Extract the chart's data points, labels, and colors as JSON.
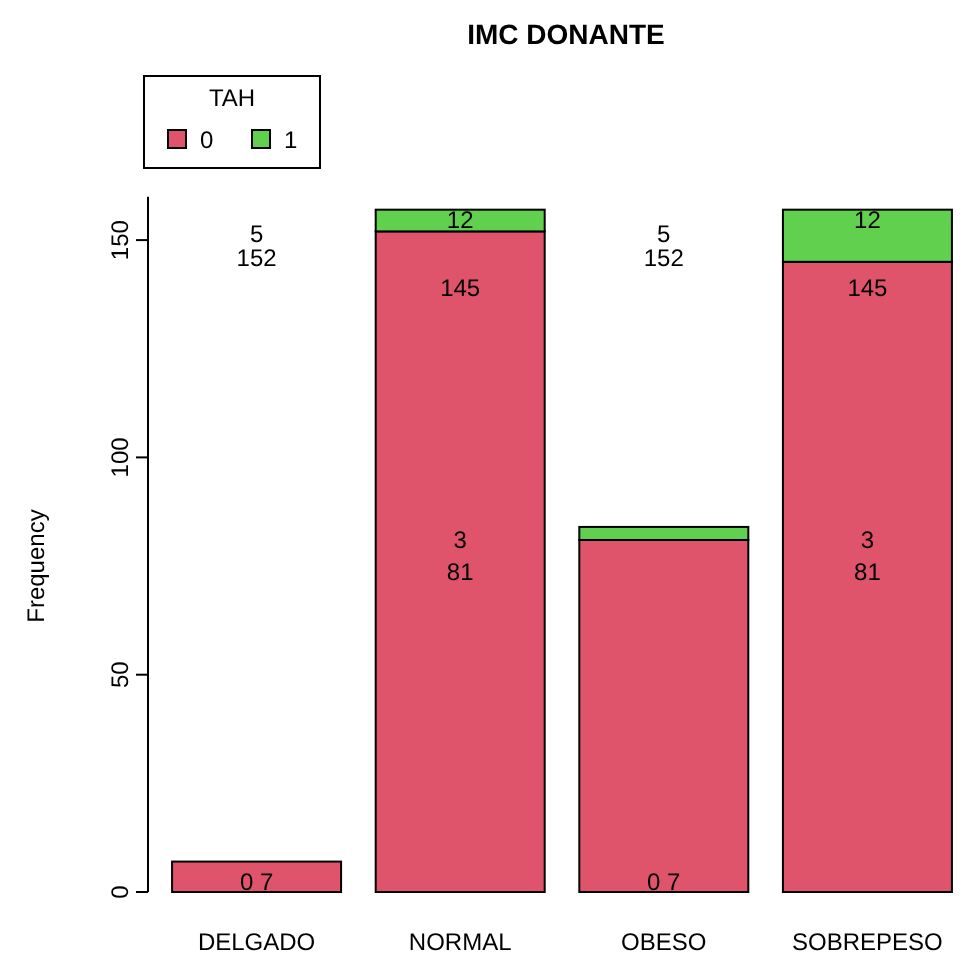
{
  "chart_data": {
    "type": "bar",
    "title": "IMC DONANTE",
    "ylabel": "Frequency",
    "legend_title": "TAH",
    "legend": "top left",
    "stacked": true,
    "categories": [
      "DELGADO",
      "NORMAL",
      "OBESO",
      "SOBREPESO"
    ],
    "series": [
      {
        "name": "0",
        "color": "#df536b",
        "values": [
          7,
          152,
          81,
          145
        ]
      },
      {
        "name": "1",
        "color": "#61d04f",
        "values": [
          0,
          5,
          3,
          12
        ]
      }
    ],
    "ylim": [
      0,
      160
    ],
    "yticks": [
      0,
      50,
      100,
      150
    ],
    "annotations": [
      "5",
      "152",
      "0",
      "7",
      "12",
      "145",
      "3",
      "81",
      "5",
      "152",
      "0",
      "7",
      "12",
      "145",
      "3",
      "81"
    ]
  }
}
